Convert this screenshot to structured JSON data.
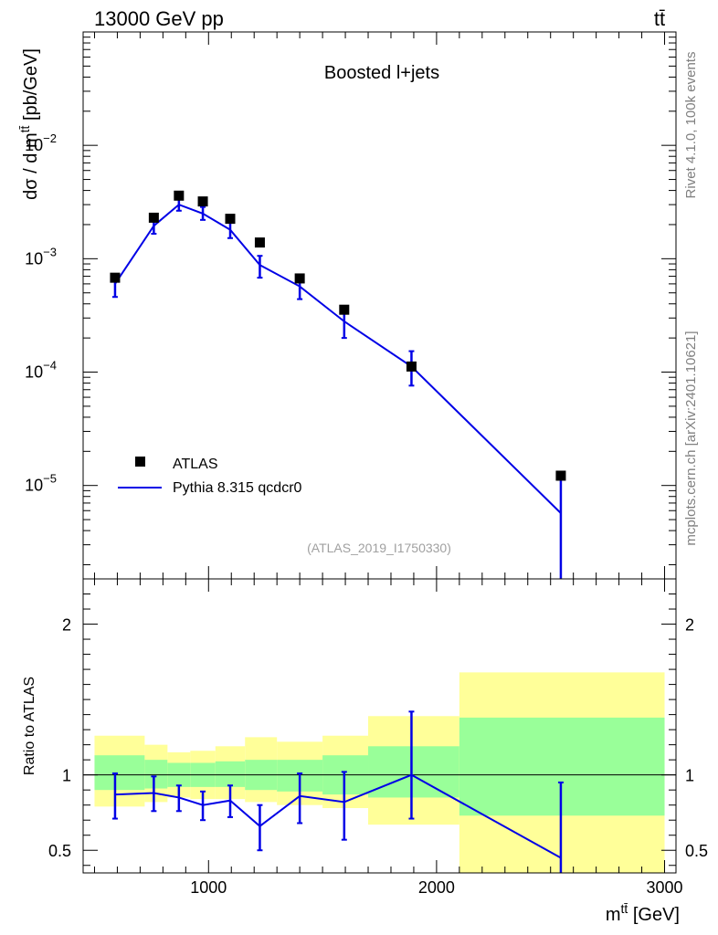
{
  "header": {
    "left": "13000 GeV pp",
    "right": "tt̄"
  },
  "side_text": {
    "rivet": "Rivet 4.1.0,  100k events",
    "source": "mcplots.cern.ch [arXiv:2401.10621]"
  },
  "chart_data": [
    {
      "type": "scatter",
      "name": "main",
      "title": "Boosted l+jets",
      "analysis_label": "(ATLAS_2019_I1750330)",
      "ylabel": "dσ / d m^{tt̄} [pb/GeV]",
      "yscale": "log",
      "ylim": [
        1.5e-06,
        0.1
      ],
      "xlim": [
        450,
        3050
      ],
      "ytick_labels": [
        {
          "value": 0.01,
          "base": "10",
          "exp": "−2"
        },
        {
          "value": 0.001,
          "base": "10",
          "exp": "−3"
        },
        {
          "value": 0.0001,
          "base": "10",
          "exp": "−4"
        },
        {
          "value": 1e-05,
          "base": "10",
          "exp": "−5"
        }
      ],
      "legend": [
        {
          "label": "ATLAS",
          "marker": "square",
          "color": "#000000"
        },
        {
          "label": "Pythia 8.315 qcdcr0",
          "marker": "line",
          "color": "#0000e6"
        }
      ],
      "data_points": {
        "name": "ATLAS",
        "x": [
          590,
          760,
          870,
          975,
          1095,
          1225,
          1400,
          1595,
          1890,
          2545
        ],
        "y": [
          0.00068,
          0.0023,
          0.0036,
          0.0032,
          0.00225,
          0.00139,
          0.00067,
          0.000355,
          0.000112,
          1.22e-05
        ]
      },
      "mc_series": {
        "name": "Pythia 8.315 qcdcr0",
        "x": [
          590,
          760,
          870,
          975,
          1095,
          1225,
          1400,
          1595,
          1890,
          2545
        ],
        "y": [
          0.0006,
          0.00195,
          0.003,
          0.0025,
          0.0018,
          0.00088,
          0.00057,
          0.00028,
          0.000112,
          5.7e-06
        ],
        "err_lo": [
          0.00046,
          0.00166,
          0.00265,
          0.0022,
          0.00152,
          0.00068,
          0.00044,
          0.0002,
          7.6e-05,
          1.5e-06
        ],
        "err_hi": [
          0.00071,
          0.00228,
          0.0034,
          0.00286,
          0.0021,
          0.00106,
          0.00071,
          0.00036,
          0.000153,
          1.2e-05
        ]
      }
    },
    {
      "type": "line",
      "name": "ratio",
      "ylabel": "Ratio to ATLAS",
      "xlabel": "m^{tt̄} [GeV]",
      "ylim": [
        0.35,
        2.3
      ],
      "xlim": [
        450,
        3050
      ],
      "xticks": [
        1000,
        2000,
        3000
      ],
      "xtick_labels": [
        "1000",
        "2000",
        "3000"
      ],
      "yticks": [
        0.5,
        1,
        2
      ],
      "ytick_labels": [
        "0.5",
        "1",
        "2"
      ],
      "bins": [
        {
          "lo": 500,
          "hi": 720,
          "green_lo": 0.9,
          "green_hi": 1.13,
          "yellow_lo": 0.79,
          "yellow_hi": 1.26
        },
        {
          "lo": 720,
          "hi": 820,
          "green_lo": 0.91,
          "green_hi": 1.1,
          "yellow_lo": 0.82,
          "yellow_hi": 1.2
        },
        {
          "lo": 820,
          "hi": 920,
          "green_lo": 0.92,
          "green_hi": 1.08,
          "yellow_lo": 0.85,
          "yellow_hi": 1.15
        },
        {
          "lo": 920,
          "hi": 1030,
          "green_lo": 0.92,
          "green_hi": 1.08,
          "yellow_lo": 0.84,
          "yellow_hi": 1.16
        },
        {
          "lo": 1030,
          "hi": 1160,
          "green_lo": 0.92,
          "green_hi": 1.09,
          "yellow_lo": 0.84,
          "yellow_hi": 1.19
        },
        {
          "lo": 1160,
          "hi": 1300,
          "green_lo": 0.9,
          "green_hi": 1.1,
          "yellow_lo": 0.82,
          "yellow_hi": 1.25
        },
        {
          "lo": 1300,
          "hi": 1500,
          "green_lo": 0.89,
          "green_hi": 1.1,
          "yellow_lo": 0.8,
          "yellow_hi": 1.22
        },
        {
          "lo": 1500,
          "hi": 1700,
          "green_lo": 0.87,
          "green_hi": 1.13,
          "yellow_lo": 0.78,
          "yellow_hi": 1.26
        },
        {
          "lo": 1700,
          "hi": 2100,
          "green_lo": 0.85,
          "green_hi": 1.19,
          "yellow_lo": 0.67,
          "yellow_hi": 1.39
        },
        {
          "lo": 2100,
          "hi": 3000,
          "green_lo": 0.73,
          "green_hi": 1.38,
          "yellow_lo": 0.35,
          "yellow_hi": 1.68
        }
      ],
      "series": [
        {
          "name": "Pythia 8.315 qcdcr0",
          "x": [
            590,
            760,
            870,
            975,
            1095,
            1225,
            1400,
            1595,
            1890,
            2545
          ],
          "values": [
            0.87,
            0.88,
            0.85,
            0.8,
            0.83,
            0.66,
            0.86,
            0.82,
            1.0,
            0.45
          ],
          "err_lo": [
            0.71,
            0.76,
            0.76,
            0.7,
            0.72,
            0.5,
            0.68,
            0.57,
            0.71,
            0.3
          ],
          "err_hi": [
            1.01,
            0.99,
            0.93,
            0.89,
            0.93,
            0.8,
            1.01,
            1.02,
            1.42,
            0.95
          ]
        }
      ]
    }
  ]
}
